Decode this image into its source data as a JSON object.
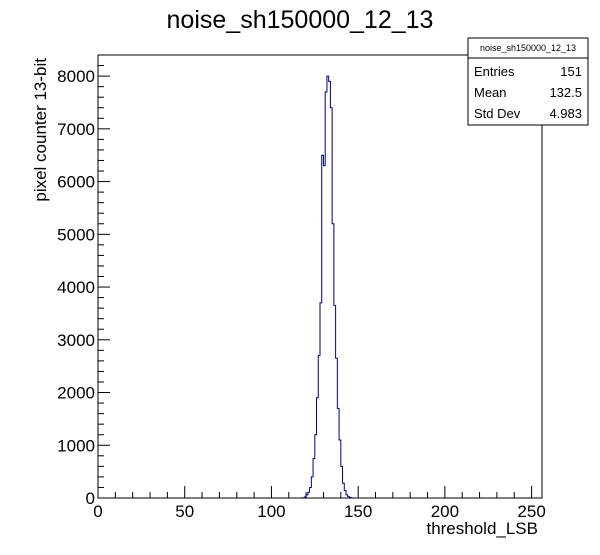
{
  "chart_data": {
    "type": "histogram",
    "title": "noise_sh150000_12_13",
    "xlabel": "threshold_LSB",
    "ylabel": "pixel counter 13-bit",
    "xlim": [
      0,
      256
    ],
    "ylim": [
      0,
      8400
    ],
    "x_ticks": [
      0,
      50,
      100,
      150,
      200,
      250
    ],
    "y_ticks": [
      0,
      1000,
      2000,
      3000,
      4000,
      5000,
      6000,
      7000,
      8000
    ],
    "bin_width": 1,
    "bins_x": [
      118,
      119,
      120,
      121,
      122,
      123,
      124,
      125,
      126,
      127,
      128,
      129,
      130,
      131,
      132,
      133,
      134,
      135,
      136,
      137,
      138,
      139,
      140,
      141,
      142,
      143,
      144,
      145,
      146
    ],
    "bins_y": [
      5,
      20,
      60,
      110,
      200,
      400,
      750,
      1200,
      1900,
      2700,
      3700,
      6500,
      6300,
      7700,
      8000,
      7900,
      7400,
      5200,
      3650,
      2650,
      1700,
      1100,
      600,
      280,
      140,
      60,
      25,
      10,
      3
    ],
    "line_color": "#000080",
    "stats": {
      "name": "noise_sh150000_12_13",
      "rows": [
        {
          "label": "Entries",
          "value": "151"
        },
        {
          "label": "Mean",
          "value": "132.5"
        },
        {
          "label": "Std Dev",
          "value": "4.983"
        }
      ]
    }
  }
}
